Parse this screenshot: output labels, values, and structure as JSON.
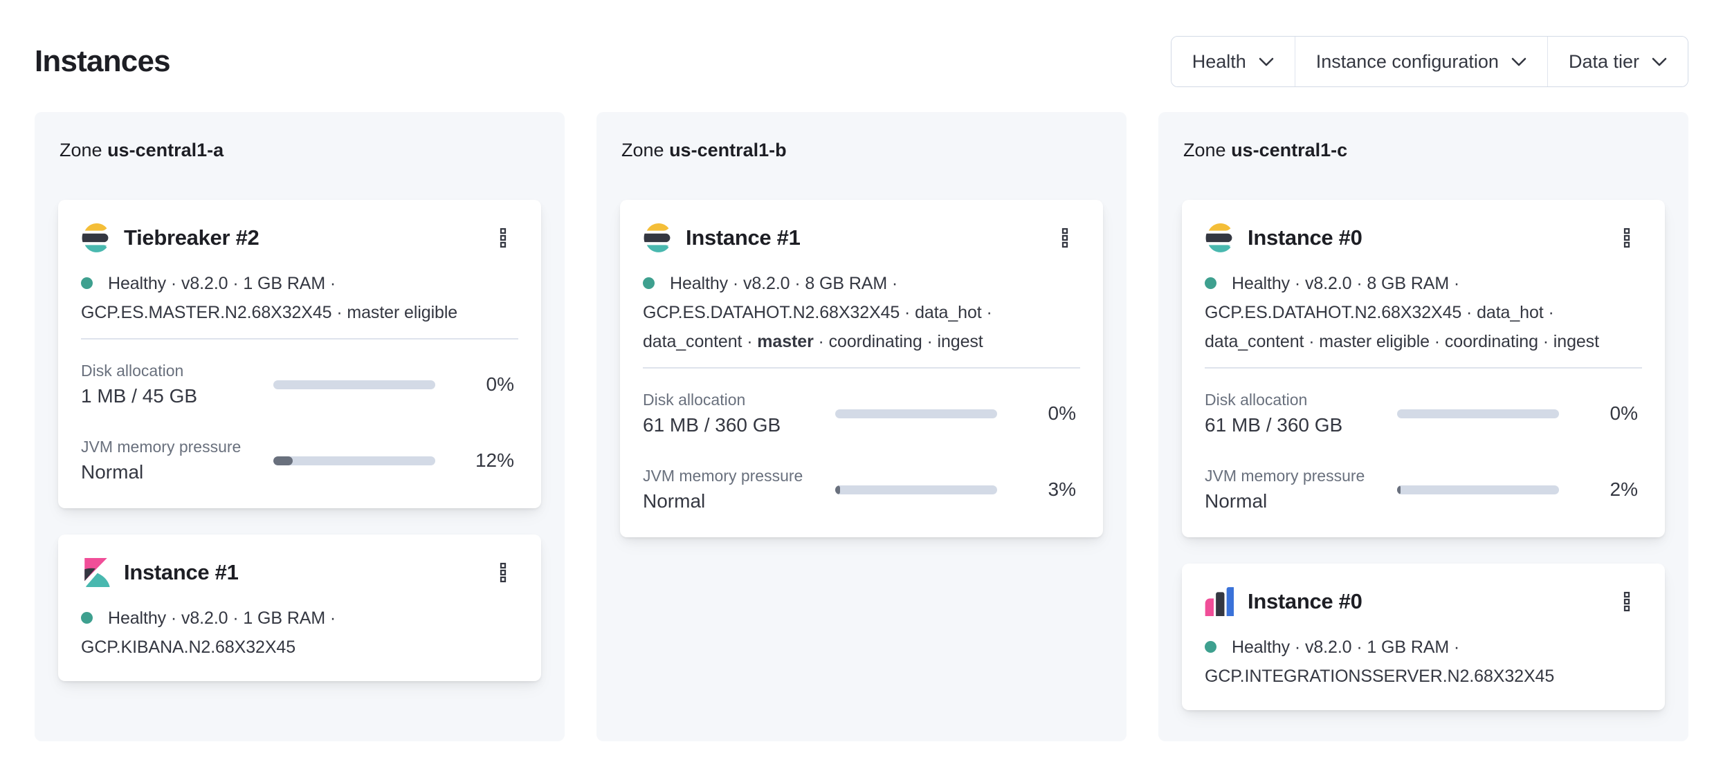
{
  "page": {
    "title": "Instances"
  },
  "filters": [
    {
      "label": "Health"
    },
    {
      "label": "Instance configuration"
    },
    {
      "label": "Data tier"
    }
  ],
  "colors": {
    "panel_bg": "#F5F7FA",
    "text_primary": "#343741",
    "text_subdued": "#69707D",
    "divider": "#D3DAE6",
    "bar_track": "#D3DAE6",
    "bar_fill": "#69707D",
    "health_dot": "#3EA08F",
    "logo_yellow": "#F4BE38",
    "logo_teal": "#49B8AF",
    "logo_dark": "#343741",
    "logo_pink": "#F04E98",
    "logo_blue": "#3A72D9"
  },
  "zones": [
    {
      "label_prefix": "Zone",
      "name": "us-central1-a",
      "cards": [
        {
          "logo": "elasticsearch",
          "title": "Tiebreaker #2",
          "status_lines": [
            {
              "dot": true,
              "runs": [
                {
                  "text": "Healthy · v8.2.0 · 1 GB RAM ·"
                }
              ]
            },
            {
              "runs": [
                {
                  "text": "GCP.ES.MASTER.N2.68X32X45 · master eligible"
                }
              ]
            }
          ],
          "metrics": [
            {
              "label": "Disk allocation",
              "value": "1 MB / 45 GB",
              "percent": "0%",
              "fill_pct": 0
            },
            {
              "label": "JVM memory pressure",
              "value": "Normal",
              "percent": "12%",
              "fill_pct": 12
            }
          ]
        },
        {
          "logo": "kibana",
          "title": "Instance #1",
          "status_lines": [
            {
              "dot": true,
              "runs": [
                {
                  "text": "Healthy · v8.2.0 · 1 GB RAM ·"
                }
              ]
            },
            {
              "runs": [
                {
                  "text": "GCP.KIBANA.N2.68X32X45"
                }
              ]
            }
          ],
          "metrics": []
        }
      ]
    },
    {
      "label_prefix": "Zone",
      "name": "us-central1-b",
      "cards": [
        {
          "logo": "elasticsearch",
          "title": "Instance #1",
          "status_lines": [
            {
              "dot": true,
              "runs": [
                {
                  "text": "Healthy · v8.2.0 · 8 GB RAM ·"
                }
              ]
            },
            {
              "runs": [
                {
                  "text": "GCP.ES.DATAHOT.N2.68X32X45 · data_hot ·"
                }
              ]
            },
            {
              "runs": [
                {
                  "text": "data_content · "
                },
                {
                  "text": "master",
                  "bold": true
                },
                {
                  "text": " · coordinating · ingest"
                }
              ]
            }
          ],
          "metrics": [
            {
              "label": "Disk allocation",
              "value": "61 MB / 360 GB",
              "percent": "0%",
              "fill_pct": 0
            },
            {
              "label": "JVM memory pressure",
              "value": "Normal",
              "percent": "3%",
              "fill_pct": 3
            }
          ]
        }
      ]
    },
    {
      "label_prefix": "Zone",
      "name": "us-central1-c",
      "cards": [
        {
          "logo": "elasticsearch",
          "title": "Instance #0",
          "status_lines": [
            {
              "dot": true,
              "runs": [
                {
                  "text": "Healthy · v8.2.0 · 8 GB RAM ·"
                }
              ]
            },
            {
              "runs": [
                {
                  "text": "GCP.ES.DATAHOT.N2.68X32X45 · data_hot ·"
                }
              ]
            },
            {
              "runs": [
                {
                  "text": "data_content · master eligible · coordinating · ingest"
                }
              ]
            }
          ],
          "metrics": [
            {
              "label": "Disk allocation",
              "value": "61 MB / 360 GB",
              "percent": "0%",
              "fill_pct": 0
            },
            {
              "label": "JVM memory pressure",
              "value": "Normal",
              "percent": "2%",
              "fill_pct": 2
            }
          ]
        },
        {
          "logo": "integrations_server",
          "title": "Instance #0",
          "status_lines": [
            {
              "dot": true,
              "runs": [
                {
                  "text": "Healthy · v8.2.0 · 1 GB RAM ·"
                }
              ]
            },
            {
              "runs": [
                {
                  "text": "GCP.INTEGRATIONSSERVER.N2.68X32X45"
                }
              ]
            }
          ],
          "metrics": []
        }
      ]
    }
  ]
}
